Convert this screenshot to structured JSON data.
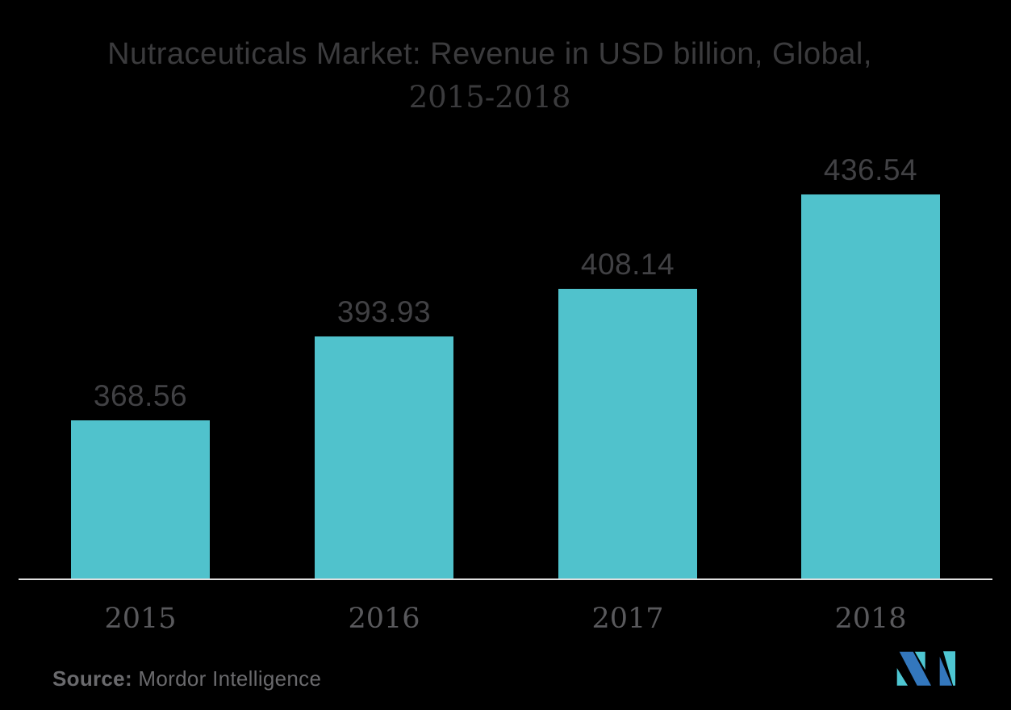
{
  "title": {
    "line1": "Nutraceuticals Market: Revenue in USD billion, Global,",
    "line2": "2015-2018"
  },
  "chart_data": {
    "type": "bar",
    "title": "Nutraceuticals Market: Revenue in USD billion, Global, 2015-2018",
    "categories": [
      "2015",
      "2016",
      "2017",
      "2018"
    ],
    "values": [
      368.56,
      393.93,
      408.14,
      436.54
    ],
    "series_name": "Revenue in USD billion",
    "xlabel": "",
    "ylabel": "Revenue in USD billion",
    "ylim": [
      321,
      452
    ],
    "grid": false,
    "legend": "none",
    "data_labels_shown": true,
    "bar_color": "#50C2CC"
  },
  "source": {
    "label": "Source:",
    "name": " Mordor Intelligence"
  },
  "colors": {
    "background": "#000000",
    "bar": "#50C2CC",
    "title_text": "#3B3B3D",
    "value_label_text": "#414144",
    "year_label_text": "#59595C",
    "source_text": "#6A6A6D",
    "axis_line": "#E0E0E0",
    "logo_blue": "#3377BD",
    "logo_teal": "#4EC6D2"
  },
  "logo": {
    "name": "Mordor Intelligence"
  }
}
